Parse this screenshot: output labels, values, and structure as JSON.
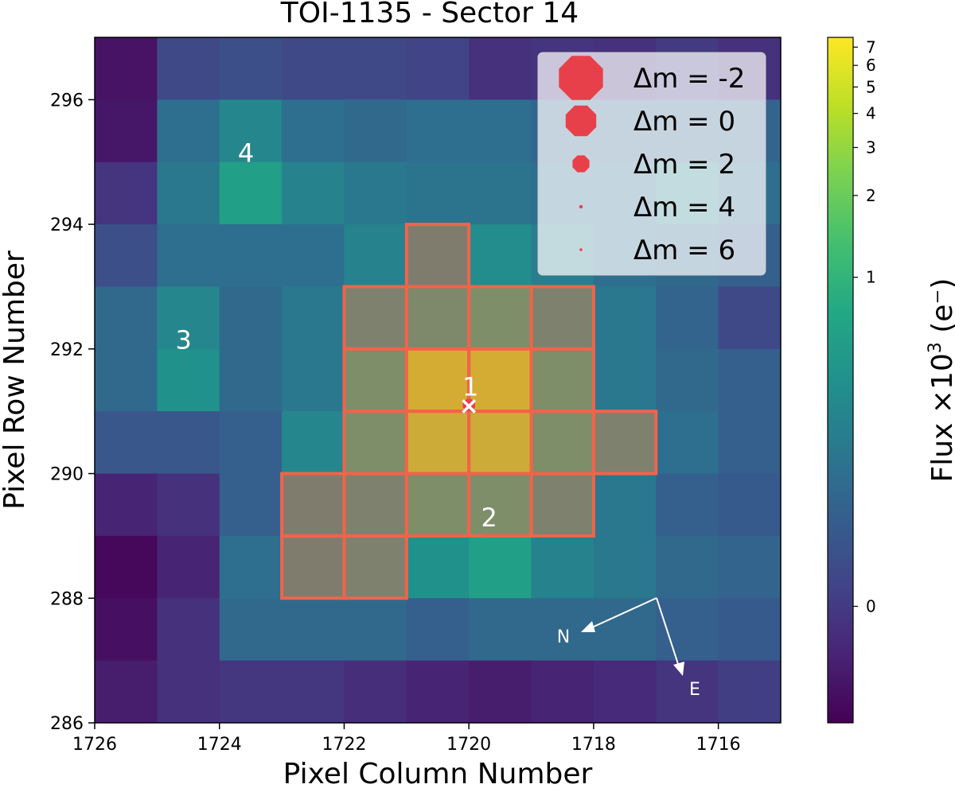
{
  "chart_data": {
    "type": "heatmap",
    "title": "TOI-1135 - Sector 14",
    "xlabel": "Pixel Column Number",
    "ylabel": "Pixel Row Number",
    "xlim": [
      1726,
      1715
    ],
    "ylim": [
      286,
      297
    ],
    "x_ticks": [
      "1726",
      "1724",
      "1722",
      "1720",
      "1718",
      "1716"
    ],
    "y_ticks": [
      "286",
      "288",
      "290",
      "292",
      "294",
      "296"
    ],
    "colorbar": {
      "label_prefix": "Flux ×10",
      "label_exp": "3",
      "label_suffix": " (e⁻)",
      "colormap": "viridis",
      "ticks": [
        "0",
        "1",
        "2",
        "3",
        "4",
        "5",
        "6",
        "7"
      ]
    },
    "flux_grid_rows_top_to_bottom": [
      [
        0.05,
        0.22,
        0.24,
        0.22,
        0.22,
        0.2,
        0.14,
        0.15,
        0.14,
        0.17,
        0.14
      ],
      [
        0.06,
        0.36,
        0.46,
        0.36,
        0.34,
        0.36,
        0.36,
        0.32,
        0.32,
        0.32,
        0.32
      ],
      [
        0.15,
        0.4,
        0.56,
        0.44,
        0.4,
        0.38,
        0.38,
        0.36,
        0.36,
        0.44,
        0.36
      ],
      [
        0.24,
        0.36,
        0.36,
        0.36,
        0.44,
        0.46,
        0.48,
        0.42,
        0.36,
        0.34,
        0.3
      ],
      [
        0.34,
        0.46,
        0.34,
        0.4,
        0.5,
        0.55,
        0.6,
        0.5,
        0.4,
        0.32,
        0.22
      ],
      [
        0.34,
        0.5,
        0.34,
        0.4,
        0.6,
        0.9,
        0.9,
        0.6,
        0.4,
        0.34,
        0.3
      ],
      [
        0.27,
        0.27,
        0.3,
        0.46,
        0.6,
        0.88,
        0.88,
        0.6,
        0.5,
        0.36,
        0.3
      ],
      [
        0.1,
        0.14,
        0.3,
        0.46,
        0.5,
        0.6,
        0.6,
        0.5,
        0.4,
        0.3,
        0.28
      ],
      [
        0.02,
        0.1,
        0.36,
        0.46,
        0.5,
        0.5,
        0.56,
        0.44,
        0.4,
        0.34,
        0.32
      ],
      [
        0.04,
        0.14,
        0.34,
        0.34,
        0.34,
        0.3,
        0.34,
        0.34,
        0.34,
        0.3,
        0.28
      ],
      [
        0.08,
        0.14,
        0.16,
        0.16,
        0.13,
        0.1,
        0.08,
        0.1,
        0.12,
        0.15,
        0.18
      ]
    ],
    "aperture_pixels": [
      [
        1721,
        293
      ],
      [
        1722,
        292
      ],
      [
        1721,
        292
      ],
      [
        1720,
        292
      ],
      [
        1719,
        292
      ],
      [
        1722,
        291
      ],
      [
        1721,
        291
      ],
      [
        1720,
        291
      ],
      [
        1719,
        291
      ],
      [
        1722,
        290
      ],
      [
        1721,
        290
      ],
      [
        1720,
        290
      ],
      [
        1719,
        290
      ],
      [
        1718,
        290
      ],
      [
        1723,
        289
      ],
      [
        1722,
        289
      ],
      [
        1721,
        289
      ],
      [
        1720,
        289
      ],
      [
        1719,
        289
      ],
      [
        1723,
        288
      ],
      [
        1722,
        288
      ]
    ],
    "stars": [
      {
        "label": "1",
        "x": 1720.0,
        "y": 291.1,
        "dm": 0
      },
      {
        "label": "2",
        "x": 1719.7,
        "y": 289.0,
        "dm": 4.5
      },
      {
        "label": "3",
        "x": 1724.6,
        "y": 291.85,
        "dm": 4.5
      },
      {
        "label": "4",
        "x": 1723.6,
        "y": 294.85,
        "dm": 4.5
      },
      {
        "label": "",
        "x": 1715.35,
        "y": 294.8,
        "dm": 5.5
      }
    ],
    "target_marker": {
      "x": 1720.0,
      "y": 291.1,
      "symbol": "×"
    },
    "legend": {
      "position": "upper-right",
      "prefix": "Δm = ",
      "entries": [
        {
          "label": "-2",
          "dm": -2
        },
        {
          "label": "0",
          "dm": 0
        },
        {
          "label": "2",
          "dm": 2
        },
        {
          "label": "4",
          "dm": 4
        },
        {
          "label": "6",
          "dm": 6
        }
      ]
    },
    "compass": {
      "north": "N",
      "east": "E"
    },
    "colors": {
      "aperture": "#f0644a",
      "star": "#e8404a"
    }
  }
}
